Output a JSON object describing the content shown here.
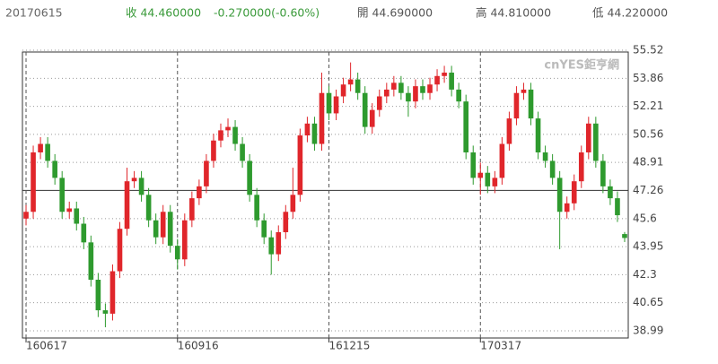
{
  "header": {
    "date": "20170615",
    "close": "收 44.460000",
    "change": "-0.270000(-0.60%)",
    "open": "開 44.690000",
    "high": "高 44.810000",
    "low": "低 44.220000"
  },
  "chart_data": {
    "type": "candlestick",
    "watermark": "cnYES鉅亨網",
    "categories": [
      "160617",
      null,
      null,
      null,
      null,
      null,
      null,
      null,
      null,
      null,
      null,
      null,
      null,
      null,
      null,
      null,
      null,
      null,
      null,
      null,
      null,
      "160916",
      null,
      null,
      null,
      null,
      null,
      null,
      null,
      null,
      null,
      null,
      null,
      null,
      null,
      null,
      null,
      null,
      null,
      null,
      null,
      null,
      "161215",
      null,
      null,
      null,
      null,
      null,
      null,
      null,
      null,
      null,
      null,
      null,
      null,
      null,
      null,
      null,
      null,
      null,
      null,
      null,
      null,
      "170317",
      null,
      null,
      null,
      null,
      null,
      null,
      null,
      null,
      null,
      null,
      null,
      null,
      null,
      null,
      null,
      null,
      null,
      null,
      null,
      null
    ],
    "open": [
      45.6,
      46.0,
      49.5,
      50.0,
      49.0,
      48.0,
      46.0,
      46.2,
      45.3,
      44.2,
      42.0,
      40.2,
      40.0,
      42.5,
      45.0,
      47.8,
      48.0,
      47.0,
      45.5,
      44.5,
      46.0,
      44.0,
      43.2,
      45.5,
      46.8,
      47.5,
      49.0,
      50.2,
      50.8,
      51.0,
      50.0,
      49.0,
      47.0,
      45.5,
      44.5,
      43.5,
      44.8,
      46.0,
      47.0,
      50.5,
      51.2,
      50.0,
      53.0,
      51.8,
      52.8,
      53.5,
      53.8,
      53.0,
      51.0,
      52.0,
      52.8,
      53.2,
      53.6,
      53.0,
      52.5,
      53.4,
      53.0,
      53.5,
      54.0,
      54.2,
      53.2,
      52.5,
      49.5,
      48.0,
      48.3,
      47.5,
      48.0,
      50.0,
      51.5,
      53.0,
      53.2,
      51.5,
      49.5,
      49.0,
      48.0,
      46.0,
      46.5,
      47.8,
      49.5,
      51.2,
      49.0,
      47.5,
      46.8,
      44.69
    ],
    "high": [
      46.4,
      49.9,
      50.4,
      50.4,
      49.4,
      48.4,
      46.6,
      46.6,
      45.7,
      44.6,
      42.4,
      40.6,
      42.9,
      45.4,
      48.6,
      48.4,
      48.4,
      47.4,
      45.9,
      46.4,
      46.4,
      44.4,
      45.9,
      47.2,
      47.9,
      49.4,
      50.6,
      51.2,
      51.5,
      51.4,
      50.4,
      49.4,
      47.4,
      45.9,
      44.9,
      45.2,
      46.4,
      48.6,
      50.9,
      51.6,
      51.6,
      54.2,
      53.4,
      53.2,
      53.9,
      54.8,
      54.2,
      53.4,
      52.4,
      53.2,
      53.6,
      54.0,
      54.0,
      53.4,
      53.8,
      53.8,
      53.9,
      54.4,
      54.6,
      54.6,
      53.6,
      52.9,
      49.9,
      48.9,
      48.7,
      48.4,
      50.4,
      51.9,
      53.4,
      53.6,
      53.6,
      51.9,
      49.9,
      49.4,
      48.4,
      46.9,
      48.2,
      49.9,
      51.6,
      51.6,
      49.4,
      47.9,
      47.2,
      44.81
    ],
    "low": [
      45.2,
      45.6,
      49.1,
      48.6,
      47.6,
      45.6,
      45.6,
      44.9,
      43.8,
      41.6,
      39.8,
      39.2,
      39.6,
      42.1,
      44.6,
      47.4,
      46.6,
      45.1,
      44.1,
      44.1,
      43.6,
      42.6,
      42.8,
      45.1,
      46.4,
      47.1,
      48.6,
      49.8,
      50.4,
      49.6,
      48.6,
      46.6,
      45.1,
      44.1,
      42.3,
      43.1,
      44.4,
      45.6,
      46.6,
      50.1,
      49.6,
      49.6,
      51.4,
      51.4,
      52.4,
      53.1,
      52.6,
      50.6,
      50.6,
      51.6,
      52.4,
      52.8,
      52.6,
      51.6,
      52.1,
      52.6,
      52.6,
      53.1,
      53.6,
      52.8,
      52.1,
      49.1,
      47.6,
      47.0,
      47.1,
      47.1,
      47.6,
      49.6,
      51.1,
      52.6,
      51.1,
      49.1,
      48.6,
      47.6,
      43.8,
      45.6,
      46.1,
      47.4,
      49.1,
      48.6,
      47.1,
      46.4,
      45.4,
      44.22
    ],
    "close": [
      46.0,
      49.5,
      50.0,
      49.0,
      48.0,
      46.0,
      46.2,
      45.3,
      44.2,
      42.0,
      40.2,
      40.0,
      42.5,
      45.0,
      47.8,
      48.0,
      47.0,
      45.5,
      44.5,
      46.0,
      44.0,
      43.2,
      45.5,
      46.8,
      47.5,
      49.0,
      50.2,
      50.8,
      51.0,
      50.0,
      49.0,
      47.0,
      45.5,
      44.5,
      43.5,
      44.8,
      46.0,
      47.0,
      50.5,
      51.2,
      50.0,
      53.0,
      51.8,
      52.8,
      53.5,
      53.8,
      53.0,
      51.0,
      52.0,
      52.8,
      53.2,
      53.6,
      53.0,
      52.5,
      53.4,
      53.0,
      53.5,
      54.0,
      54.2,
      53.2,
      52.5,
      49.5,
      48.0,
      48.3,
      47.5,
      48.0,
      50.0,
      51.5,
      53.0,
      53.2,
      51.5,
      49.5,
      49.0,
      48.0,
      46.0,
      46.5,
      47.8,
      49.5,
      51.2,
      49.0,
      47.5,
      46.8,
      45.8,
      44.46
    ],
    "up_color": "#e0262b",
    "down_color": "#2e9a2e",
    "ylim": [
      38.99,
      55.52
    ],
    "yticks": [
      55.52,
      53.86,
      52.21,
      50.56,
      48.91,
      47.26,
      45.6,
      {
        "value": 45.6,
        "label": "45.60"
      },
      43.95,
      42.3,
      40.65,
      38.99
    ],
    "reference_line": 47.26,
    "grid": true
  }
}
